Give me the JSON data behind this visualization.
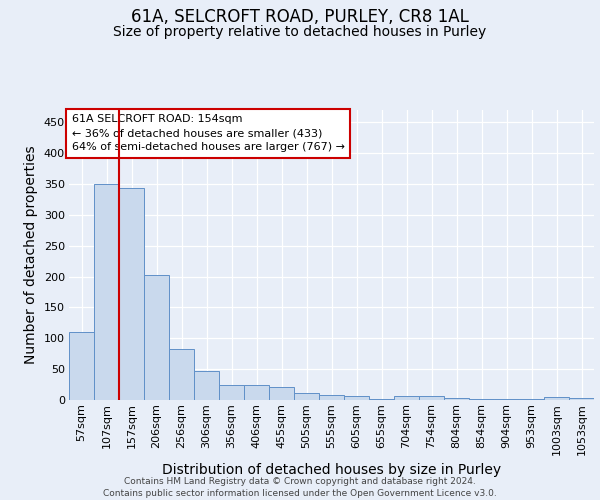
{
  "title": "61A, SELCROFT ROAD, PURLEY, CR8 1AL",
  "subtitle": "Size of property relative to detached houses in Purley",
  "xlabel": "Distribution of detached houses by size in Purley",
  "ylabel": "Number of detached properties",
  "categories": [
    "57sqm",
    "107sqm",
    "157sqm",
    "206sqm",
    "256sqm",
    "306sqm",
    "356sqm",
    "406sqm",
    "455sqm",
    "505sqm",
    "555sqm",
    "605sqm",
    "655sqm",
    "704sqm",
    "754sqm",
    "804sqm",
    "854sqm",
    "904sqm",
    "953sqm",
    "1003sqm",
    "1053sqm"
  ],
  "values": [
    110,
    350,
    343,
    203,
    83,
    47,
    25,
    24,
    21,
    11,
    8,
    7,
    2,
    7,
    7,
    4,
    1,
    1,
    1,
    5,
    4
  ],
  "bar_color": "#c9d9ed",
  "bar_edge_color": "#6090c8",
  "background_color": "#e8eef8",
  "grid_color": "#ffffff",
  "red_line_x": 1.5,
  "annotation_line1": "61A SELCROFT ROAD: 154sqm",
  "annotation_line2": "← 36% of detached houses are smaller (433)",
  "annotation_line3": "64% of semi-detached houses are larger (767) →",
  "annotation_box_color": "#ffffff",
  "annotation_box_edge": "#cc0000",
  "footer_line1": "Contains HM Land Registry data © Crown copyright and database right 2024.",
  "footer_line2": "Contains public sector information licensed under the Open Government Licence v3.0.",
  "ylim": [
    0,
    470
  ],
  "yticks": [
    0,
    50,
    100,
    150,
    200,
    250,
    300,
    350,
    400,
    450
  ],
  "title_fontsize": 12,
  "subtitle_fontsize": 10,
  "axis_label_fontsize": 10,
  "tick_fontsize": 8,
  "annotation_fontsize": 8,
  "footer_fontsize": 6.5
}
